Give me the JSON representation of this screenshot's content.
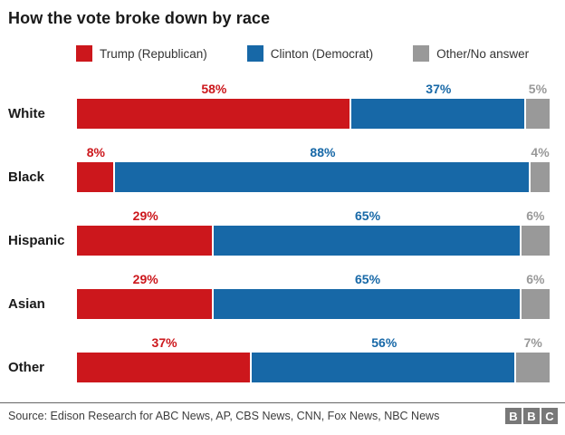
{
  "title": "How the vote broke down by race",
  "chart_data": {
    "type": "bar",
    "orientation": "horizontal-stacked",
    "title": "How the vote broke down by race",
    "categories": [
      "White",
      "Black",
      "Hispanic",
      "Asian",
      "Other"
    ],
    "series": [
      {
        "name": "Trump (Republican)",
        "color": "#cc171c",
        "values": [
          58,
          8,
          29,
          29,
          37
        ]
      },
      {
        "name": "Clinton (Democrat)",
        "color": "#1768a7",
        "values": [
          37,
          88,
          65,
          65,
          56
        ]
      },
      {
        "name": "Other/No answer",
        "color": "#999999",
        "values": [
          5,
          4,
          6,
          6,
          7
        ]
      }
    ],
    "value_suffix": "%",
    "xlim": [
      0,
      100
    ],
    "grid": false,
    "legend_position": "top",
    "data_labels": "above-segments"
  },
  "footer": {
    "source": "Source: Edison Research for ABC News, AP, CBS News, CNN, Fox News, NBC News",
    "logo_letters": [
      "B",
      "B",
      "C"
    ]
  }
}
